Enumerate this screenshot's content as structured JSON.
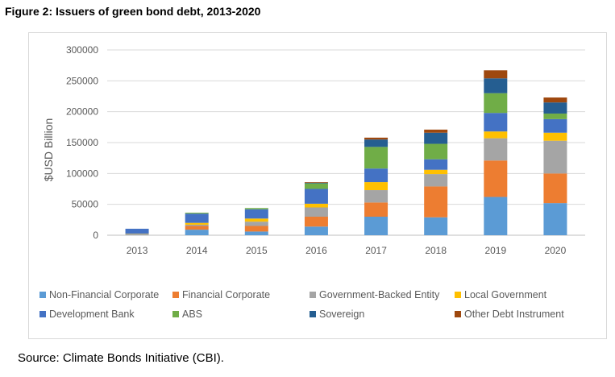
{
  "figure_title": "Figure 2: Issuers of green bond debt, 2013-2020",
  "source": "Source: Climate Bonds Initiative (CBI).",
  "chart_data": {
    "type": "bar",
    "stacked": true,
    "title": "",
    "xlabel": "",
    "ylabel": "$USD Billion",
    "ylim": [
      0,
      300000
    ],
    "yticks": [
      0,
      50000,
      100000,
      150000,
      200000,
      250000,
      300000
    ],
    "ytick_labels": [
      "0",
      "50000",
      "100000",
      "150000",
      "200000",
      "250000",
      "300000"
    ],
    "grid": true,
    "legend_position": "bottom",
    "categories": [
      "2013",
      "2014",
      "2015",
      "2016",
      "2017",
      "2018",
      "2019",
      "2020"
    ],
    "series": [
      {
        "name": "Non-Financial Corporate",
        "color": "#5B9BD5",
        "values": [
          1000,
          9000,
          6000,
          14000,
          30000,
          29000,
          62000,
          52000
        ]
      },
      {
        "name": "Financial Corporate",
        "color": "#ED7D31",
        "values": [
          500,
          6000,
          9000,
          16000,
          23000,
          50000,
          59000,
          48000
        ]
      },
      {
        "name": "Government-Backed Entity",
        "color": "#A5A5A5",
        "values": [
          500,
          2000,
          7000,
          15000,
          20000,
          20000,
          36000,
          53000
        ]
      },
      {
        "name": "Local Government",
        "color": "#FFC000",
        "values": [
          500,
          3000,
          5000,
          6000,
          13000,
          7000,
          11000,
          13000
        ]
      },
      {
        "name": "Development Bank",
        "color": "#4472C4",
        "values": [
          8000,
          15000,
          15000,
          24000,
          22000,
          17000,
          30000,
          22000
        ]
      },
      {
        "name": "ABS",
        "color": "#70AD47",
        "values": [
          0,
          1500,
          2000,
          9000,
          35000,
          25000,
          32000,
          9000
        ]
      },
      {
        "name": "Sovereign",
        "color": "#255E91",
        "values": [
          0,
          0,
          0,
          1000,
          12000,
          18000,
          24000,
          18000
        ]
      },
      {
        "name": "Other Debt Instrument",
        "color": "#9E480E",
        "values": [
          0,
          0,
          0,
          1000,
          3000,
          5000,
          13000,
          8000
        ]
      }
    ]
  }
}
